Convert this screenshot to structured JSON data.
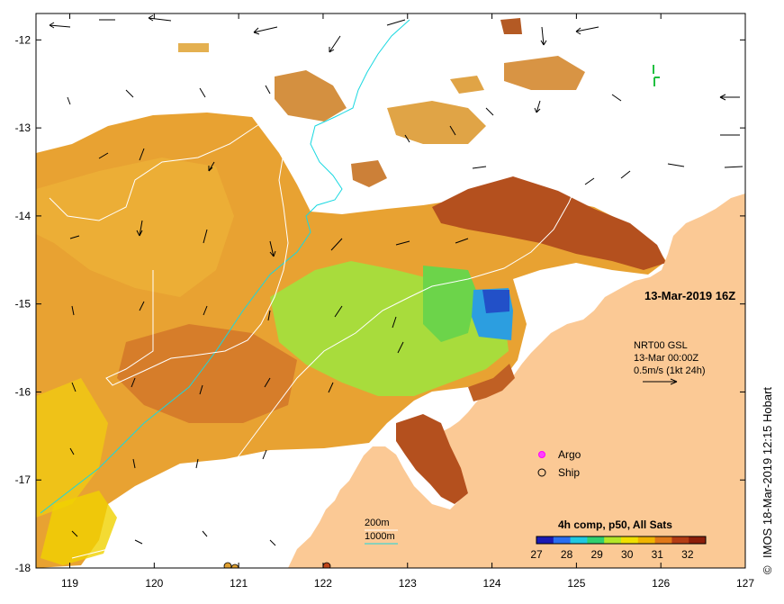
{
  "map": {
    "lon_ticks": [
      "119",
      "120",
      "121",
      "122",
      "123",
      "124",
      "125",
      "126",
      "127"
    ],
    "lat_ticks": [
      "-12",
      "-13",
      "-14",
      "-15",
      "-16",
      "-17",
      "-18"
    ],
    "lon_range": [
      118.6,
      127.0
    ],
    "lat_range": [
      -18.0,
      -11.7
    ]
  },
  "date_label": "13-Mar-2019 16Z",
  "current_legend": {
    "line1": "NRT00 GSL",
    "line2": "13-Mar 00:00Z",
    "line3": "0.5m/s (1kt 24h)"
  },
  "markers": {
    "argo_label": "Argo",
    "ship_label": "Ship"
  },
  "bathymetry": {
    "line200": "200m",
    "line1000": "1000m"
  },
  "colorbar": {
    "title": "4h comp, p50, All Sats",
    "ticks": [
      "27",
      "28",
      "29",
      "30",
      "31",
      "32"
    ],
    "colors": [
      "#1a1ab4",
      "#2a6ef0",
      "#20c8e0",
      "#30d070",
      "#b4e628",
      "#f0e000",
      "#f0b400",
      "#e07818",
      "#b43c14",
      "#8c1e0a"
    ]
  },
  "credit": "IMOS 18-Mar-2019 12:15 Hobart",
  "credit_symbol": "©",
  "colors": {
    "land": "#fbc995",
    "warm": "#e8a232",
    "hot": "#b4501e",
    "yellow": "#f0d200",
    "green": "#8ee040",
    "cool": "#20b4e6",
    "isobath": "#18d8e0"
  }
}
